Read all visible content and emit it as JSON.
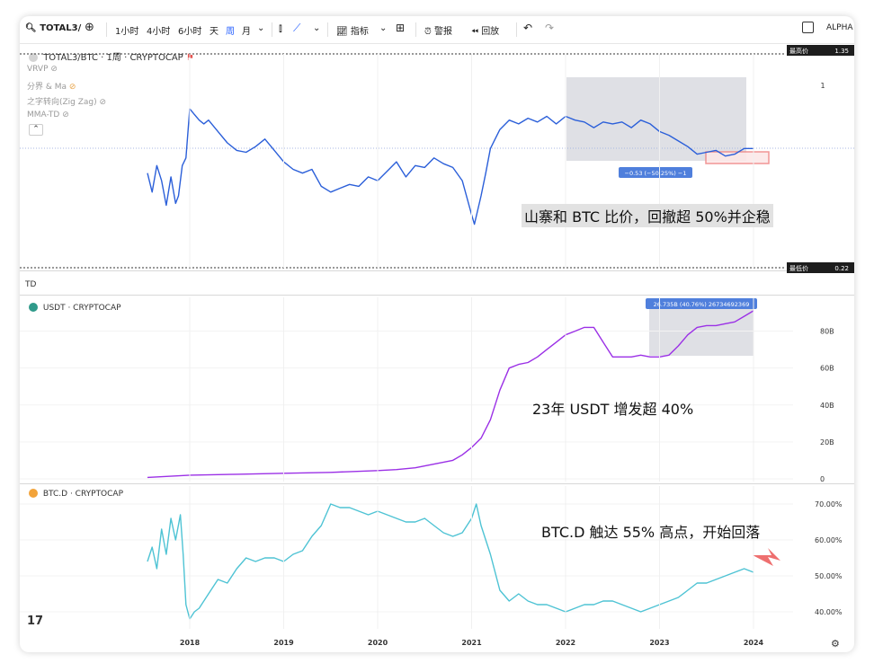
{
  "toolbar": {
    "symbol": "TOTAL3/",
    "intervals": [
      "1小时",
      "4小时",
      "6小时",
      "天",
      "周",
      "月"
    ],
    "active_interval": "周",
    "indicators_label": "指标",
    "alert_label": "警报",
    "replay_label": "回放",
    "brand": "ALPHA"
  },
  "x_axis": {
    "labels": [
      "2018",
      "2019",
      "2020",
      "2021",
      "2022",
      "2023",
      "2024"
    ]
  },
  "panel1": {
    "legend_title": "TOTAL3/BTC · 1周 · CRYPTOCAP",
    "indicators": [
      "VRVP",
      "分界 & Ma",
      "之字转向(Zig Zag)",
      "MMA-TD"
    ],
    "high_label": "最高价",
    "high_value": "1.35",
    "low_label": "最低价",
    "low_value": "0.22",
    "y_tick": "1",
    "measure_label": "−0.53 (−50.25%) −1",
    "annotation": "山寨和 BTC 比价，回撤超 50%并企稳",
    "line_color": "#2b5fd9"
  },
  "td_label": "TD",
  "panel2": {
    "legend_title": "USDT · CRYPTOCAP",
    "y_ticks": [
      "80B",
      "60B",
      "40B",
      "20B",
      "0"
    ],
    "measure_label": "26.735B (40.76%) 26734692369",
    "annotation": "23年 USDT 增发超 40%",
    "line_color": "#9b30e6"
  },
  "panel3": {
    "legend_title": "BTC.D · CRYPTOCAP",
    "y_ticks": [
      "70.00%",
      "60.00%",
      "50.00%",
      "40.00%"
    ],
    "annotation": "BTC.D 触达 55% 高点，开始回落",
    "line_color": "#4ec3d4"
  },
  "chart_data": [
    {
      "type": "line",
      "title": "TOTAL3/BTC · 1周 · CRYPTOCAP",
      "x": [
        2017.55,
        2017.6,
        2017.65,
        2017.7,
        2017.75,
        2017.8,
        2017.85,
        2017.88,
        2017.92,
        2017.96,
        2018.0,
        2018.05,
        2018.1,
        2018.15,
        2018.2,
        2018.3,
        2018.4,
        2018.5,
        2018.6,
        2018.7,
        2018.8,
        2018.9,
        2019.0,
        2019.1,
        2019.2,
        2019.3,
        2019.4,
        2019.5,
        2019.6,
        2019.7,
        2019.8,
        2019.9,
        2020.0,
        2020.1,
        2020.2,
        2020.3,
        2020.4,
        2020.5,
        2020.6,
        2020.7,
        2020.8,
        2020.9,
        2021.0,
        2021.03,
        2021.1,
        2021.15,
        2021.2,
        2021.3,
        2021.4,
        2021.5,
        2021.6,
        2021.7,
        2021.8,
        2021.9,
        2022.0,
        2022.1,
        2022.2,
        2022.3,
        2022.4,
        2022.5,
        2022.6,
        2022.7,
        2022.8,
        2022.9,
        2023.0,
        2023.1,
        2023.2,
        2023.3,
        2023.4,
        2023.5,
        2023.6,
        2023.7,
        2023.8,
        2023.9,
        2024.0
      ],
      "values": [
        0.72,
        0.62,
        0.76,
        0.68,
        0.55,
        0.7,
        0.56,
        0.6,
        0.76,
        0.8,
        1.06,
        1.03,
        1.0,
        0.98,
        1.0,
        0.94,
        0.88,
        0.84,
        0.83,
        0.86,
        0.9,
        0.84,
        0.78,
        0.74,
        0.72,
        0.74,
        0.65,
        0.62,
        0.64,
        0.66,
        0.65,
        0.7,
        0.68,
        0.73,
        0.78,
        0.7,
        0.76,
        0.75,
        0.8,
        0.77,
        0.75,
        0.68,
        0.5,
        0.45,
        0.6,
        0.72,
        0.85,
        0.95,
        1.0,
        0.98,
        1.01,
        0.99,
        1.02,
        0.98,
        1.02,
        1.0,
        0.99,
        0.96,
        0.99,
        0.98,
        0.99,
        0.96,
        1.0,
        0.98,
        0.94,
        0.92,
        0.89,
        0.86,
        0.82,
        0.83,
        0.84,
        0.81,
        0.82,
        0.85,
        0.85
      ],
      "ylim": [
        0.22,
        1.35
      ]
    },
    {
      "type": "line",
      "title": "USDT · CRYPTOCAP",
      "x": [
        2017.55,
        2018.0,
        2018.5,
        2019.0,
        2019.5,
        2020.0,
        2020.2,
        2020.4,
        2020.6,
        2020.8,
        2020.9,
        2021.0,
        2021.1,
        2021.2,
        2021.3,
        2021.4,
        2021.5,
        2021.6,
        2021.7,
        2021.8,
        2021.9,
        2022.0,
        2022.1,
        2022.2,
        2022.3,
        2022.4,
        2022.5,
        2022.6,
        2022.7,
        2022.8,
        2022.9,
        2023.0,
        2023.1,
        2023.2,
        2023.3,
        2023.4,
        2023.5,
        2023.6,
        2023.7,
        2023.8,
        2023.9,
        2024.0
      ],
      "values": [
        0.8,
        2,
        2.5,
        3,
        3.5,
        4.5,
        5,
        6,
        8,
        10,
        13,
        17,
        22,
        32,
        48,
        60,
        62,
        63,
        66,
        70,
        74,
        78,
        80,
        82,
        82,
        74,
        66,
        66,
        66,
        67,
        66,
        66,
        67,
        72,
        78,
        82,
        83,
        83,
        84,
        85,
        88,
        91
      ],
      "ylim": [
        0,
        90
      ]
    },
    {
      "type": "line",
      "title": "BTC.D · CRYPTOCAP",
      "x": [
        2017.55,
        2017.6,
        2017.65,
        2017.7,
        2017.75,
        2017.8,
        2017.85,
        2017.9,
        2017.93,
        2017.96,
        2018.0,
        2018.05,
        2018.1,
        2018.2,
        2018.3,
        2018.4,
        2018.5,
        2018.6,
        2018.7,
        2018.8,
        2018.9,
        2019.0,
        2019.1,
        2019.2,
        2019.3,
        2019.4,
        2019.5,
        2019.6,
        2019.7,
        2019.8,
        2019.9,
        2020.0,
        2020.1,
        2020.2,
        2020.3,
        2020.4,
        2020.5,
        2020.6,
        2020.7,
        2020.8,
        2020.9,
        2021.0,
        2021.05,
        2021.1,
        2021.2,
        2021.3,
        2021.4,
        2021.5,
        2021.6,
        2021.7,
        2021.8,
        2021.9,
        2022.0,
        2022.1,
        2022.2,
        2022.3,
        2022.4,
        2022.5,
        2022.6,
        2022.7,
        2022.8,
        2022.9,
        2023.0,
        2023.1,
        2023.2,
        2023.3,
        2023.4,
        2023.5,
        2023.6,
        2023.7,
        2023.8,
        2023.9,
        2024.0
      ],
      "values": [
        54,
        58,
        52,
        63,
        56,
        66,
        60,
        67,
        56,
        42,
        38,
        40,
        41,
        45,
        49,
        48,
        52,
        55,
        54,
        55,
        55,
        54,
        56,
        57,
        61,
        64,
        70,
        69,
        69,
        68,
        67,
        68,
        67,
        66,
        65,
        65,
        66,
        64,
        62,
        61,
        62,
        66,
        70,
        64,
        56,
        46,
        43,
        45,
        43,
        42,
        42,
        41,
        40,
        41,
        42,
        42,
        43,
        43,
        42,
        41,
        40,
        41,
        42,
        43,
        44,
        46,
        48,
        48,
        49,
        50,
        51,
        52,
        51
      ],
      "ylim": [
        37,
        72
      ]
    }
  ]
}
